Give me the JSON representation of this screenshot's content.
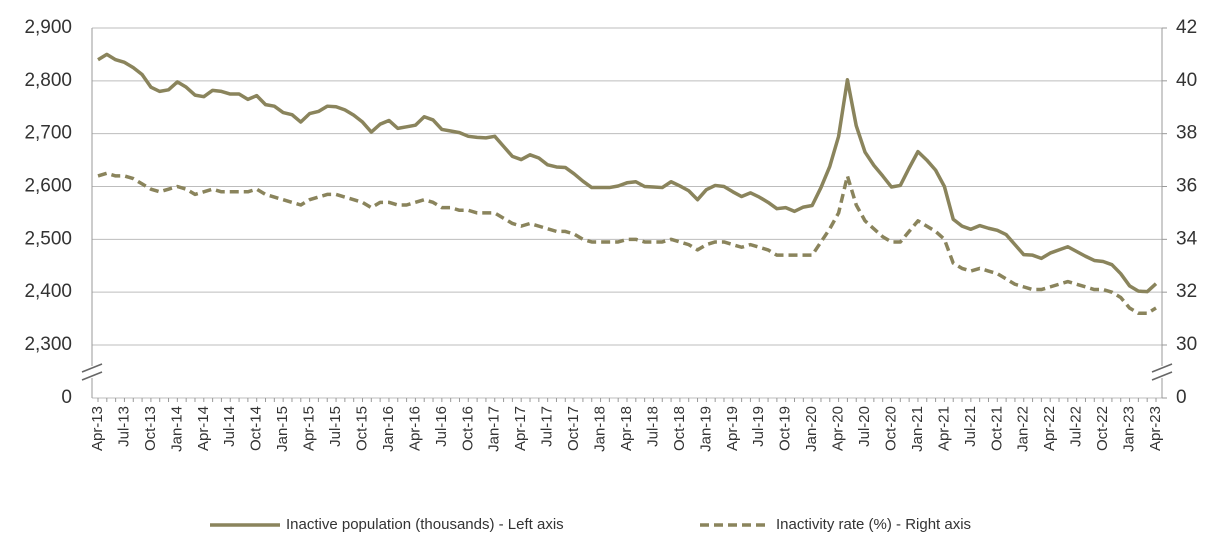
{
  "chart_data": {
    "type": "line",
    "categories": [
      "Apr-13",
      null,
      null,
      "Jul-13",
      null,
      null,
      "Oct-13",
      null,
      null,
      "Jan-14",
      null,
      null,
      "Apr-14",
      null,
      null,
      "Jul-14",
      null,
      null,
      "Oct-14",
      null,
      null,
      "Jan-15",
      null,
      null,
      "Apr-15",
      null,
      null,
      "Jul-15",
      null,
      null,
      "Oct-15",
      null,
      null,
      "Jan-16",
      null,
      null,
      "Apr-16",
      null,
      null,
      "Jul-16",
      null,
      null,
      "Oct-16",
      null,
      null,
      "Jan-17",
      null,
      null,
      "Apr-17",
      null,
      null,
      "Jul-17",
      null,
      null,
      "Oct-17",
      null,
      null,
      "Jan-18",
      null,
      null,
      "Apr-18",
      null,
      null,
      "Jul-18",
      null,
      null,
      "Oct-18",
      null,
      null,
      "Jan-19",
      null,
      null,
      "Apr-19",
      null,
      null,
      "Jul-19",
      null,
      null,
      "Oct-19",
      null,
      null,
      "Jan-20",
      null,
      null,
      "Apr-20",
      null,
      null,
      "Jul-20",
      null,
      null,
      "Oct-20",
      null,
      null,
      "Jan-21",
      null,
      null,
      "Apr-21",
      null,
      null,
      "Jul-21",
      null,
      null,
      "Oct-21",
      null,
      null,
      "Jan-22",
      null,
      null,
      "Apr-22",
      null,
      null,
      "Jul-22",
      null,
      null,
      "Oct-22",
      null,
      null,
      "Jan-23",
      null,
      null,
      "Apr-23"
    ],
    "series": [
      {
        "name": "Inactive population (thousands) - Left axis",
        "color": "#8a845c",
        "line_style": "solid",
        "values": [
          2840,
          2850,
          2840,
          2835,
          2825,
          2812,
          2788,
          2780,
          2783,
          2798,
          2788,
          2773,
          2770,
          2782,
          2780,
          2775,
          2775,
          2765,
          2772,
          2755,
          2752,
          2740,
          2736,
          2722,
          2738,
          2742,
          2752,
          2751,
          2745,
          2735,
          2722,
          2703,
          2718,
          2725,
          2710,
          2713,
          2716,
          2732,
          2726,
          2708,
          2705,
          2702,
          2695,
          2693,
          2692,
          2695,
          2676,
          2657,
          2651,
          2660,
          2654,
          2641,
          2637,
          2636,
          2624,
          2610,
          2598,
          2598,
          2598,
          2601,
          2607,
          2609,
          2600,
          2599,
          2598,
          2609,
          2601,
          2592,
          2575,
          2594,
          2602,
          2600,
          2590,
          2581,
          2588,
          2580,
          2570,
          2558,
          2560,
          2553,
          2561,
          2564,
          2598,
          2638,
          2695,
          2802,
          2715,
          2665,
          2640,
          2620,
          2599,
          2602,
          2635,
          2666,
          2650,
          2631,
          2600,
          2538,
          2525,
          2519,
          2526,
          2521,
          2517,
          2509,
          2490,
          2471,
          2470,
          2464,
          2474,
          2480,
          2486,
          2477,
          2468,
          2460,
          2458,
          2452,
          2435,
          2412,
          2402,
          2401,
          2416
        ]
      },
      {
        "name": "Inactivity rate (%) - Right axis",
        "color": "#8a845c",
        "line_style": "dashed",
        "axis": "y2",
        "values": [
          36.4,
          36.5,
          36.4,
          36.4,
          36.3,
          36.1,
          35.9,
          35.8,
          35.9,
          36.0,
          35.9,
          35.7,
          35.8,
          35.9,
          35.8,
          35.8,
          35.8,
          35.8,
          35.9,
          35.7,
          35.6,
          35.5,
          35.4,
          35.3,
          35.5,
          35.6,
          35.7,
          35.7,
          35.6,
          35.5,
          35.4,
          35.2,
          35.4,
          35.4,
          35.3,
          35.3,
          35.4,
          35.5,
          35.4,
          35.2,
          35.2,
          35.1,
          35.1,
          35.0,
          35.0,
          35.0,
          34.8,
          34.6,
          34.5,
          34.6,
          34.5,
          34.4,
          34.3,
          34.3,
          34.2,
          34.0,
          33.9,
          33.9,
          33.9,
          33.9,
          34.0,
          34.0,
          33.9,
          33.9,
          33.9,
          34.0,
          33.9,
          33.8,
          33.6,
          33.8,
          33.9,
          33.9,
          33.8,
          33.7,
          33.8,
          33.7,
          33.6,
          33.4,
          33.4,
          33.4,
          33.4,
          33.4,
          33.9,
          34.4,
          35.0,
          36.4,
          35.3,
          34.7,
          34.4,
          34.1,
          33.9,
          33.9,
          34.3,
          34.7,
          34.5,
          34.3,
          34.0,
          33.1,
          32.9,
          32.8,
          32.9,
          32.8,
          32.7,
          32.5,
          32.3,
          32.2,
          32.1,
          32.1,
          32.2,
          32.3,
          32.4,
          32.3,
          32.2,
          32.1,
          32.1,
          32.0,
          31.8,
          31.4,
          31.2,
          31.2,
          31.4
        ]
      }
    ],
    "ylim": [
      0,
      2900
    ],
    "ybreak": [
      0,
      2300
    ],
    "yticks": [
      0,
      {
        "value": 2300,
        "label": "2,300"
      },
      {
        "value": 2400,
        "label": "2,400"
      },
      {
        "value": 2500,
        "label": "2,500"
      },
      {
        "value": 2600,
        "label": "2,600"
      },
      {
        "value": 2700,
        "label": "2,700"
      },
      {
        "value": 2800,
        "label": "2,800"
      },
      {
        "value": 2900,
        "label": "2,900"
      }
    ],
    "y2lim": [
      0,
      42
    ],
    "y2break": [
      0,
      30
    ],
    "y2ticks": [
      0,
      30,
      32,
      34,
      36,
      38,
      40,
      42
    ],
    "grid": true,
    "legend": "bottom"
  }
}
